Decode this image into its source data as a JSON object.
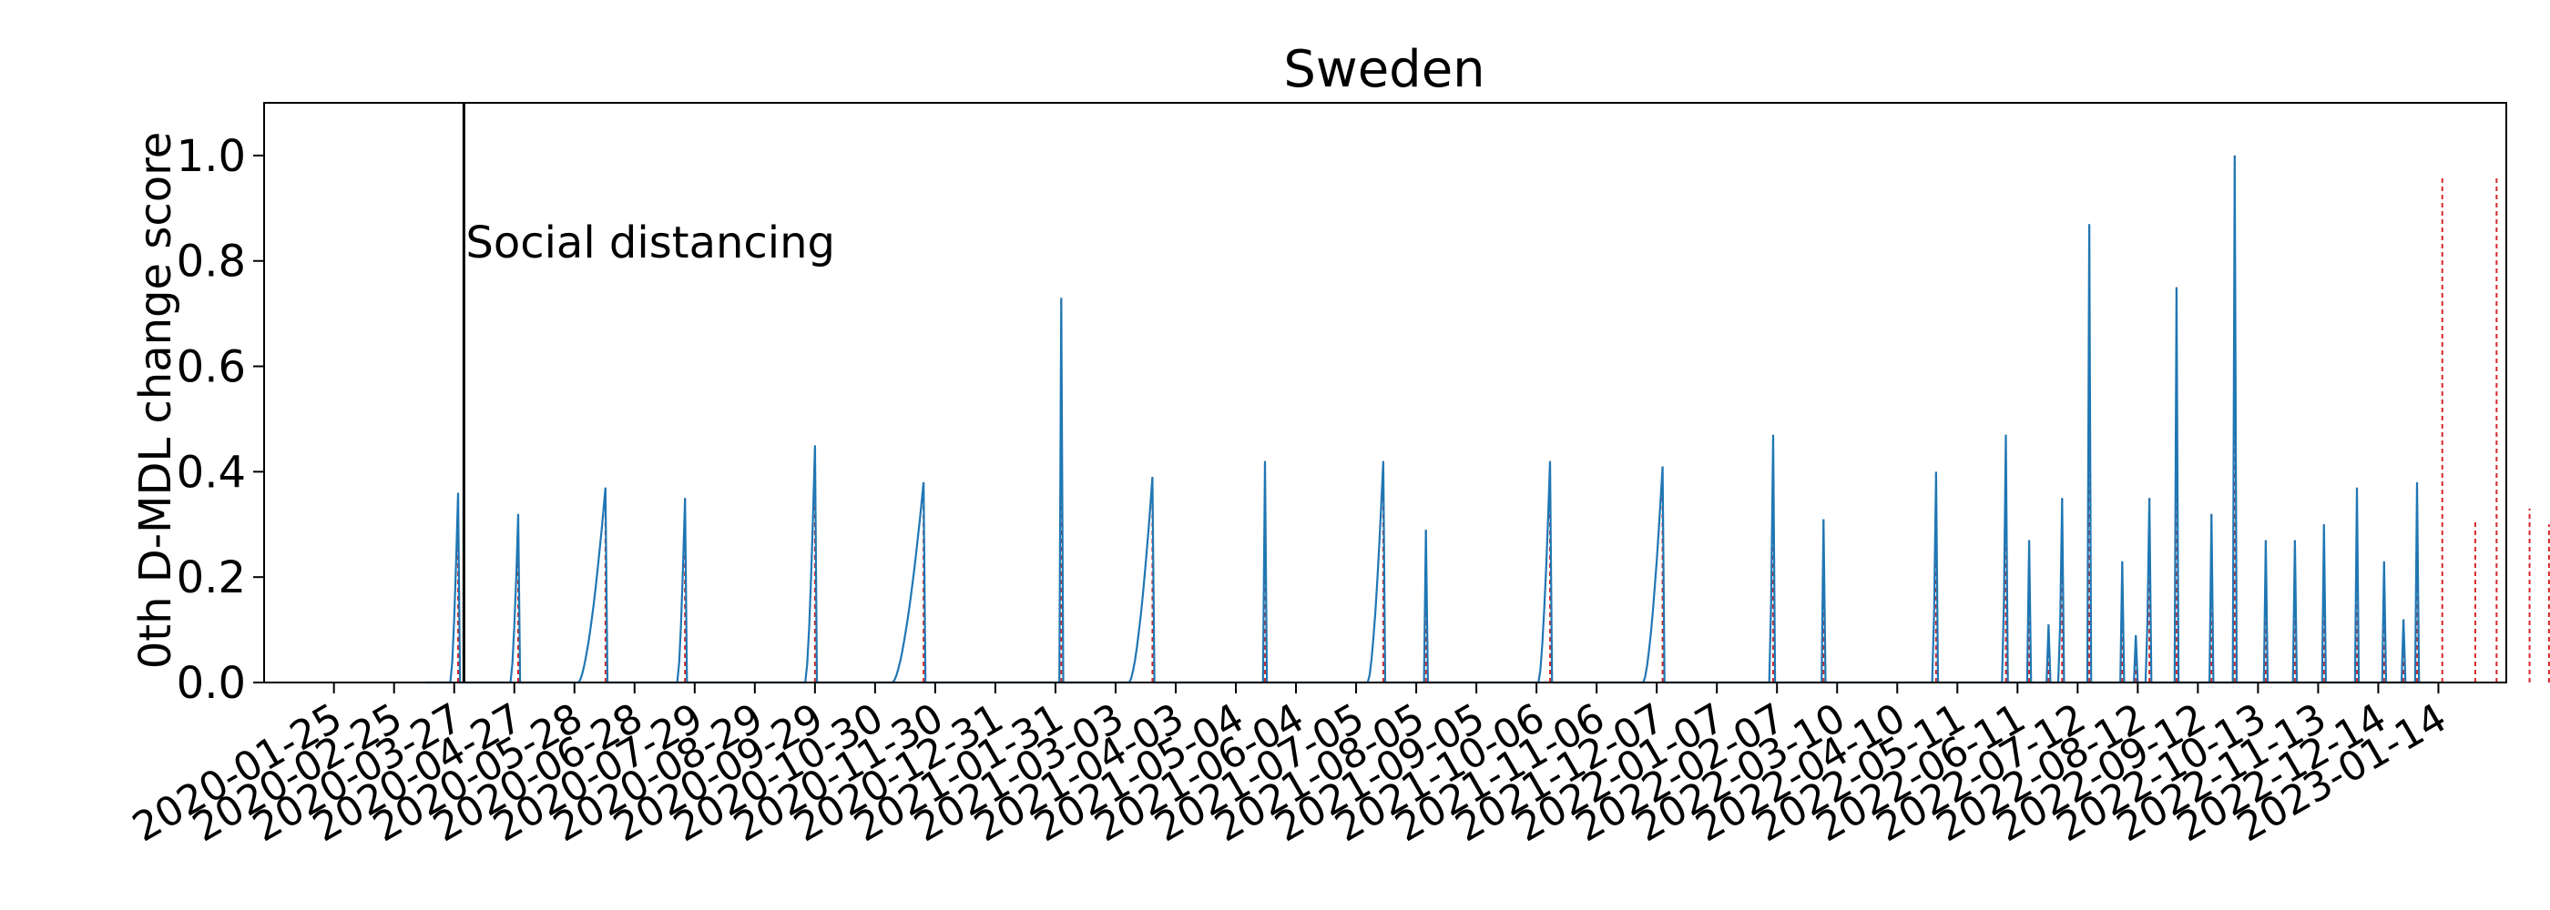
{
  "chart_data": {
    "type": "line",
    "title": "Sweden",
    "xlabel": "",
    "ylabel": "0th D-MDL change score",
    "ylim": [
      0.0,
      1.1
    ],
    "xlim": [
      "2019-12-20",
      "2023-02-18"
    ],
    "y_ticks": [
      "0.0",
      "0.2",
      "0.4",
      "0.6",
      "0.8",
      "1.0"
    ],
    "x_ticks": [
      "2020-01-25",
      "2020-02-25",
      "2020-03-27",
      "2020-04-27",
      "2020-05-28",
      "2020-06-28",
      "2020-07-29",
      "2020-08-29",
      "2020-09-29",
      "2020-10-30",
      "2020-11-30",
      "2020-12-31",
      "2021-01-31",
      "2021-03-03",
      "2021-04-03",
      "2021-05-04",
      "2021-06-04",
      "2021-07-05",
      "2021-08-05",
      "2021-09-05",
      "2021-10-06",
      "2021-11-06",
      "2021-12-07",
      "2022-01-07",
      "2022-02-07",
      "2022-03-10",
      "2022-04-10",
      "2022-05-11",
      "2022-06-11",
      "2022-07-12",
      "2022-08-12",
      "2022-09-12",
      "2022-10-13",
      "2022-11-13",
      "2022-12-14",
      "2023-01-14"
    ],
    "grid": false,
    "series_color": "#1f77b4",
    "alarm_color": "#d62728",
    "score_series": {
      "start": "2020-03-12",
      "end": "2023-01-13",
      "peaks": [
        {
          "date": "2020-03-29",
          "value": 0.36,
          "width": 4
        },
        {
          "date": "2020-04-29",
          "value": 0.32,
          "width": 4
        },
        {
          "date": "2020-06-13",
          "value": 0.37,
          "width": 14
        },
        {
          "date": "2020-07-24",
          "value": 0.35,
          "width": 4
        },
        {
          "date": "2020-09-29",
          "value": 0.45,
          "width": 5
        },
        {
          "date": "2020-11-24",
          "value": 0.38,
          "width": 16
        },
        {
          "date": "2021-02-03",
          "value": 0.73,
          "width": 1
        },
        {
          "date": "2021-03-22",
          "value": 0.39,
          "width": 12
        },
        {
          "date": "2021-05-19",
          "value": 0.42,
          "width": 1
        },
        {
          "date": "2021-07-19",
          "value": 0.42,
          "width": 8
        },
        {
          "date": "2021-08-10",
          "value": 0.29,
          "width": 1
        },
        {
          "date": "2021-10-13",
          "value": 0.42,
          "width": 6
        },
        {
          "date": "2021-12-10",
          "value": 0.41,
          "width": 10
        },
        {
          "date": "2022-02-05",
          "value": 0.47,
          "width": 2
        },
        {
          "date": "2022-03-03",
          "value": 0.31,
          "width": 1
        },
        {
          "date": "2022-04-30",
          "value": 0.4,
          "width": 2
        },
        {
          "date": "2022-06-05",
          "value": 0.47,
          "width": 2
        },
        {
          "date": "2022-06-17",
          "value": 0.27,
          "width": 1
        },
        {
          "date": "2022-06-27",
          "value": 0.11,
          "width": 1
        },
        {
          "date": "2022-07-04",
          "value": 0.35,
          "width": 2
        },
        {
          "date": "2022-07-18",
          "value": 0.87,
          "width": 1
        },
        {
          "date": "2022-08-04",
          "value": 0.23,
          "width": 1
        },
        {
          "date": "2022-08-11",
          "value": 0.09,
          "width": 1
        },
        {
          "date": "2022-08-18",
          "value": 0.35,
          "width": 2
        },
        {
          "date": "2022-09-01",
          "value": 0.75,
          "width": 1
        },
        {
          "date": "2022-09-19",
          "value": 0.32,
          "width": 1
        },
        {
          "date": "2022-10-01",
          "value": 1.0,
          "width": 1
        },
        {
          "date": "2022-10-17",
          "value": 0.27,
          "width": 1
        },
        {
          "date": "2022-11-01",
          "value": 0.27,
          "width": 1
        },
        {
          "date": "2022-11-16",
          "value": 0.3,
          "width": 1
        },
        {
          "date": "2022-12-03",
          "value": 0.37,
          "width": 1
        },
        {
          "date": "2022-12-17",
          "value": 0.23,
          "width": 1
        },
        {
          "date": "2022-12-27",
          "value": 0.12,
          "width": 1
        },
        {
          "date": "2023-01-03",
          "value": 0.38,
          "width": 1
        },
        {
          "date": "2023-01-16",
          "value": 0.96,
          "width": 1
        },
        {
          "date": "2023-02-02",
          "value": 0.31,
          "width": 1
        },
        {
          "date": "2023-02-13",
          "value": 0.96,
          "width": 1
        },
        {
          "date": "2023-02-30",
          "value": 0.33,
          "width": 1
        },
        {
          "date": "2023-03-12",
          "value": 0.3,
          "width": 1
        }
      ]
    },
    "annotations": [
      {
        "label": "Social distancing",
        "date": "2020-04-01",
        "label_y": 0.82
      }
    ]
  }
}
